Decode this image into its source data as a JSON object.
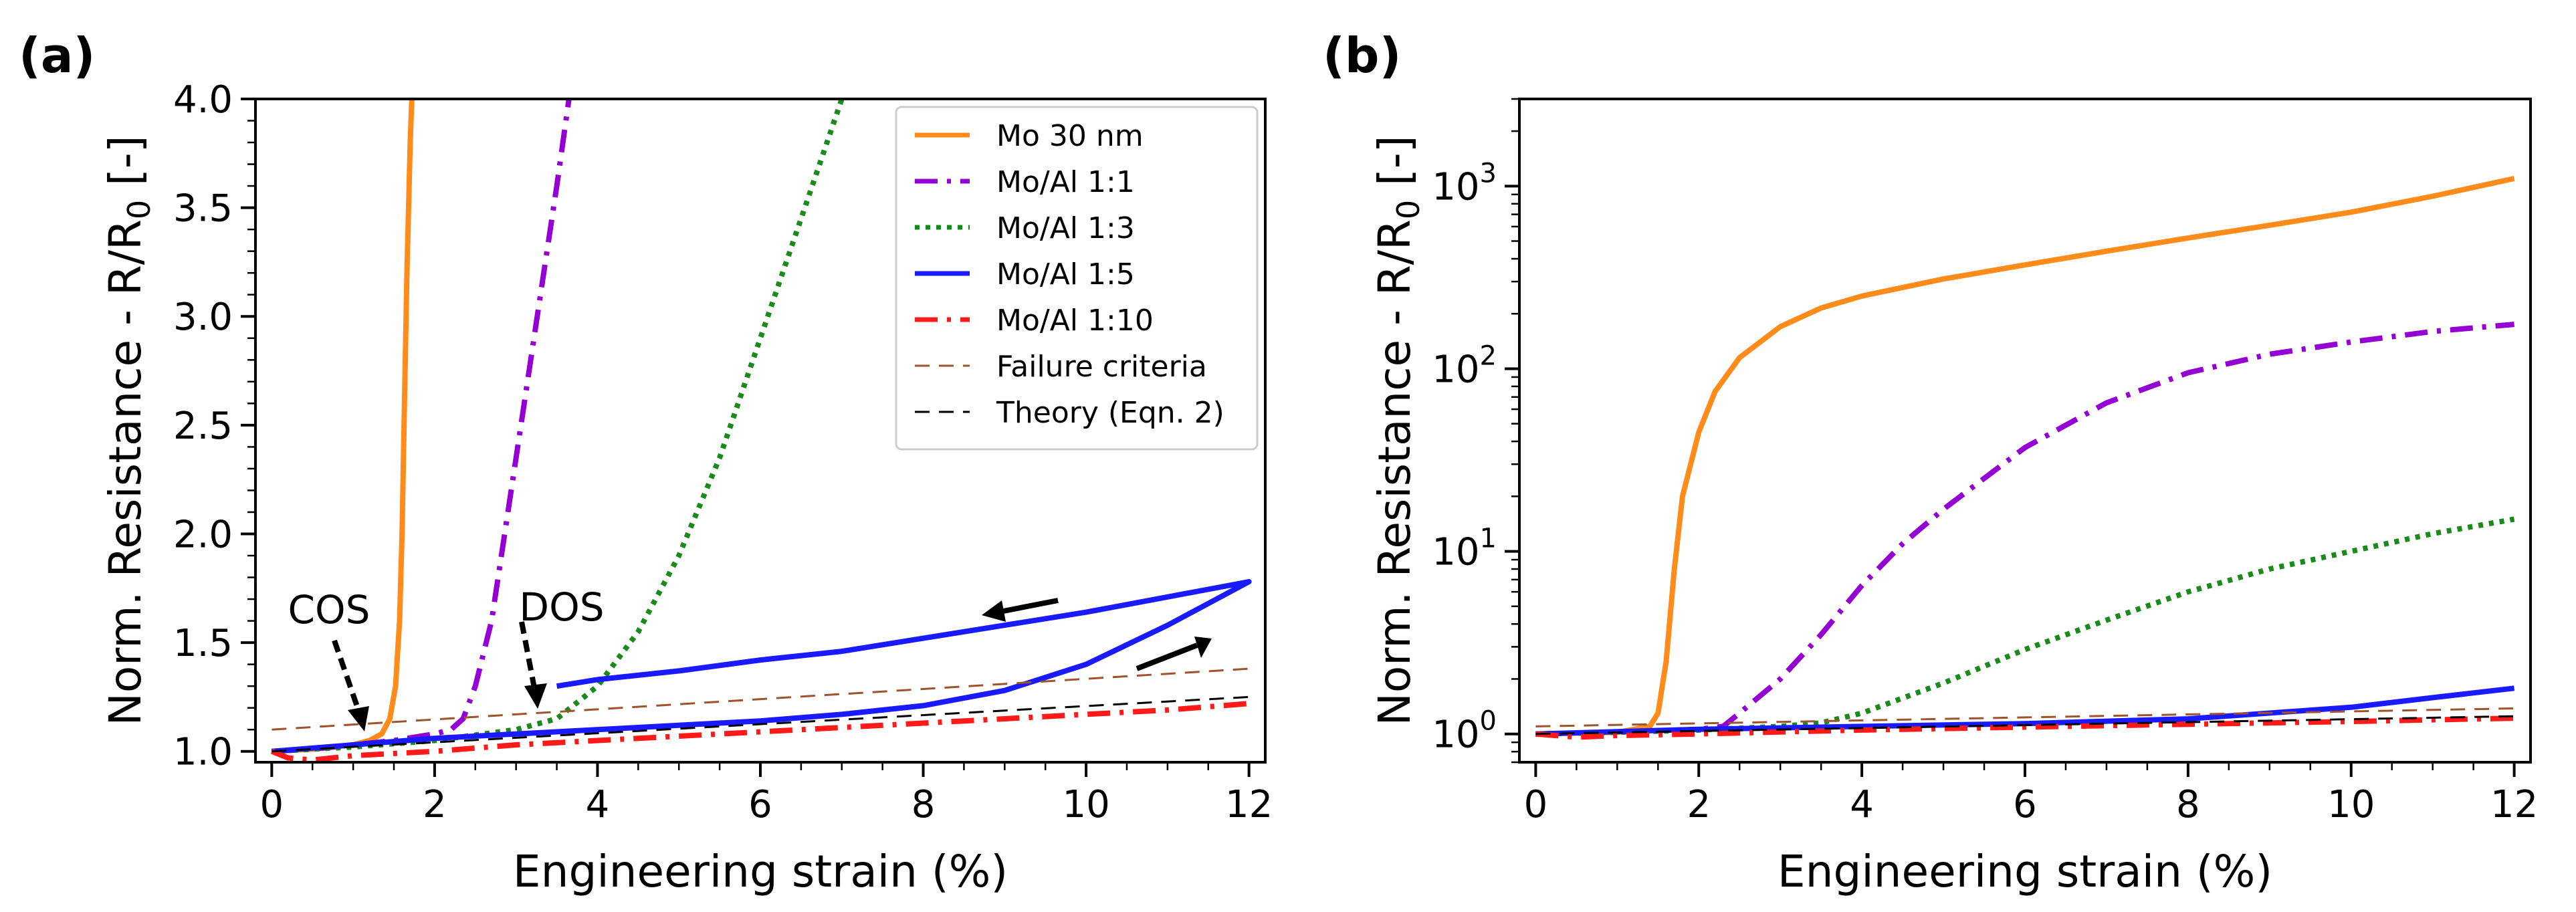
{
  "panels": [
    {
      "label": "(a)",
      "chart_data": {
        "type": "line",
        "xlabel": "Engineering strain (%)",
        "ylabel": "Norm. Resistance - R/R0 [-]",
        "yscale": "linear",
        "xlim": [
          -0.2,
          12.2
        ],
        "ylim": [
          0.95,
          4.0
        ],
        "xticks": [
          0,
          2,
          4,
          6,
          8,
          10,
          12
        ],
        "xtick_labels": [
          "0",
          "2",
          "4",
          "6",
          "8",
          "10",
          "12"
        ],
        "yticks": [
          1.0,
          1.5,
          2.0,
          2.5,
          3.0,
          3.5,
          4.0
        ],
        "ytick_labels": [
          "1.0",
          "1.5",
          "2.0",
          "2.5",
          "3.0",
          "3.5",
          "4.0"
        ],
        "series": [
          {
            "name": "Mo 30 nm",
            "color": "#ff8c1a",
            "dash": "solid",
            "x": [
              0,
              0.5,
              1.0,
              1.2,
              1.35,
              1.45,
              1.52,
              1.57,
              1.6,
              1.63,
              1.66,
              1.7,
              1.72
            ],
            "y": [
              1.0,
              1.01,
              1.03,
              1.05,
              1.08,
              1.15,
              1.3,
              1.6,
              2.0,
              2.6,
              3.2,
              3.8,
              4.0
            ]
          },
          {
            "name": "Mo/Al 1:1",
            "color": "#9400d3",
            "dash": "dashdot",
            "x": [
              0,
              0.5,
              1.0,
              1.5,
              2.0,
              2.2,
              2.35,
              2.5,
              2.7,
              2.9,
              3.1,
              3.3,
              3.5,
              3.65
            ],
            "y": [
              1.0,
              1.01,
              1.03,
              1.05,
              1.08,
              1.1,
              1.15,
              1.3,
              1.6,
              2.1,
              2.6,
              3.1,
              3.6,
              4.0
            ]
          },
          {
            "name": "Mo/Al 1:3",
            "color": "#1a8a1a",
            "dash": "dotted",
            "x": [
              0,
              1,
              2,
              3,
              3.5,
              4,
              4.5,
              5,
              5.5,
              6,
              6.5,
              7
            ],
            "y": [
              1.0,
              1.02,
              1.05,
              1.1,
              1.15,
              1.3,
              1.55,
              1.9,
              2.35,
              2.9,
              3.45,
              4.0
            ]
          },
          {
            "name": "Mo/Al 1:5",
            "color": "#1a1aff",
            "dash": "solid",
            "x": [
              0,
              1,
              2,
              3,
              4,
              5,
              6,
              7,
              8,
              9,
              10,
              11,
              11.5,
              12,
              11,
              10,
              9,
              8,
              7,
              6,
              5,
              4,
              3.5
            ],
            "y": [
              1.0,
              1.03,
              1.06,
              1.08,
              1.1,
              1.12,
              1.14,
              1.17,
              1.21,
              1.28,
              1.4,
              1.58,
              1.68,
              1.78,
              1.71,
              1.64,
              1.58,
              1.52,
              1.46,
              1.42,
              1.37,
              1.33,
              1.3
            ]
          },
          {
            "name": "Mo/Al 1:10",
            "color": "#ff1a1a",
            "dash": "dashdot",
            "x": [
              0,
              0.2,
              0.5,
              1,
              2,
              3,
              4,
              5,
              6,
              7,
              8,
              9,
              10,
              11,
              12
            ],
            "y": [
              1.0,
              0.97,
              0.96,
              0.98,
              1.0,
              1.03,
              1.05,
              1.07,
              1.09,
              1.11,
              1.13,
              1.15,
              1.17,
              1.19,
              1.22
            ]
          },
          {
            "name": "Failure criteria",
            "color": "#a0522d",
            "dash": "dashed",
            "width": 3,
            "x": [
              0,
              12
            ],
            "y": [
              1.1,
              1.38
            ]
          },
          {
            "name": "Theory (Eqn. 2)",
            "color": "#000000",
            "dash": "dashed",
            "width": 3,
            "x": [
              0,
              12
            ],
            "y": [
              1.0,
              1.25
            ]
          }
        ],
        "legend_position": "top-right",
        "annotations": [
          {
            "text": "COS",
            "x": 0.8,
            "y": 1.66
          },
          {
            "text": "DOS",
            "x": 3.2,
            "y": 1.66
          }
        ]
      }
    },
    {
      "label": "(b)",
      "chart_data": {
        "type": "line",
        "xlabel": "Engineering strain (%)",
        "ylabel": "Norm. Resistance - R/R0 [-]",
        "yscale": "log",
        "xlim": [
          -0.2,
          12.2
        ],
        "ylim": [
          0.7,
          3000
        ],
        "xticks": [
          0,
          2,
          4,
          6,
          8,
          10,
          12
        ],
        "xtick_labels": [
          "0",
          "2",
          "4",
          "6",
          "8",
          "10",
          "12"
        ],
        "yticks": [
          1,
          10,
          100,
          1000
        ],
        "ytick_exponents": [
          "0",
          "1",
          "2",
          "3"
        ],
        "series": [
          {
            "name": "Mo 30 nm",
            "color": "#ff8c1a",
            "dash": "solid",
            "x": [
              0,
              1,
              1.4,
              1.5,
              1.6,
              1.7,
              1.8,
              2.0,
              2.2,
              2.5,
              3,
              3.5,
              4,
              5,
              6,
              7,
              8,
              9,
              10,
              11,
              12
            ],
            "y": [
              1,
              1.02,
              1.1,
              1.3,
              2.5,
              8,
              20,
              45,
              75,
              115,
              170,
              215,
              250,
              310,
              370,
              440,
              520,
              610,
              720,
              880,
              1100
            ]
          },
          {
            "name": "Mo/Al 1:1",
            "color": "#9400d3",
            "dash": "dashdot",
            "x": [
              0,
              1,
              2,
              2.3,
              2.5,
              3,
              3.5,
              4,
              4.5,
              5,
              6,
              7,
              8,
              9,
              10,
              11,
              12
            ],
            "y": [
              1,
              1.02,
              1.06,
              1.1,
              1.3,
              2,
              3.5,
              6.5,
              11,
              17,
              37,
              65,
              95,
              120,
              140,
              160,
              175
            ]
          },
          {
            "name": "Mo/Al 1:3",
            "color": "#1a8a1a",
            "dash": "dotted",
            "x": [
              0,
              1,
              2,
              3,
              3.5,
              4,
              5,
              6,
              7,
              8,
              9,
              10,
              11,
              12
            ],
            "y": [
              1,
              1.02,
              1.05,
              1.1,
              1.15,
              1.3,
              1.9,
              2.9,
              4.2,
              6,
              8,
              10,
              12.5,
              15
            ]
          },
          {
            "name": "Mo/Al 1:5",
            "color": "#1a1aff",
            "dash": "solid",
            "x": [
              0,
              2,
              4,
              6,
              8,
              10,
              11,
              12
            ],
            "y": [
              1,
              1.06,
              1.1,
              1.14,
              1.21,
              1.4,
              1.58,
              1.78
            ]
          },
          {
            "name": "Mo/Al 1:10",
            "color": "#ff1a1a",
            "dash": "dashdot",
            "x": [
              0,
              0.5,
              1,
              2,
              4,
              6,
              8,
              10,
              12
            ],
            "y": [
              1,
              0.96,
              0.98,
              1.0,
              1.05,
              1.09,
              1.13,
              1.17,
              1.22
            ]
          },
          {
            "name": "Failure criteria",
            "color": "#a0522d",
            "dash": "dashed",
            "width": 3,
            "x": [
              0,
              12
            ],
            "y": [
              1.1,
              1.38
            ]
          },
          {
            "name": "Theory (Eqn. 2)",
            "color": "#000000",
            "dash": "dashed",
            "width": 3,
            "x": [
              0,
              12
            ],
            "y": [
              1.0,
              1.25
            ]
          }
        ]
      }
    }
  ],
  "legend_items": [
    {
      "label": "Mo 30 nm",
      "color": "#ff8c1a",
      "dash": "solid"
    },
    {
      "label": "Mo/Al 1:1",
      "color": "#9400d3",
      "dash": "dashdot"
    },
    {
      "label": "Mo/Al 1:3",
      "color": "#1a8a1a",
      "dash": "dotted"
    },
    {
      "label": "Mo/Al 1:5",
      "color": "#1a1aff",
      "dash": "solid"
    },
    {
      "label": "Mo/Al 1:10",
      "color": "#ff1a1a",
      "dash": "dashdot"
    },
    {
      "label": "Failure criteria",
      "color": "#a0522d",
      "dash": "dashed"
    },
    {
      "label": "Theory (Eqn. 2)",
      "color": "#000000",
      "dash": "dashed"
    }
  ]
}
